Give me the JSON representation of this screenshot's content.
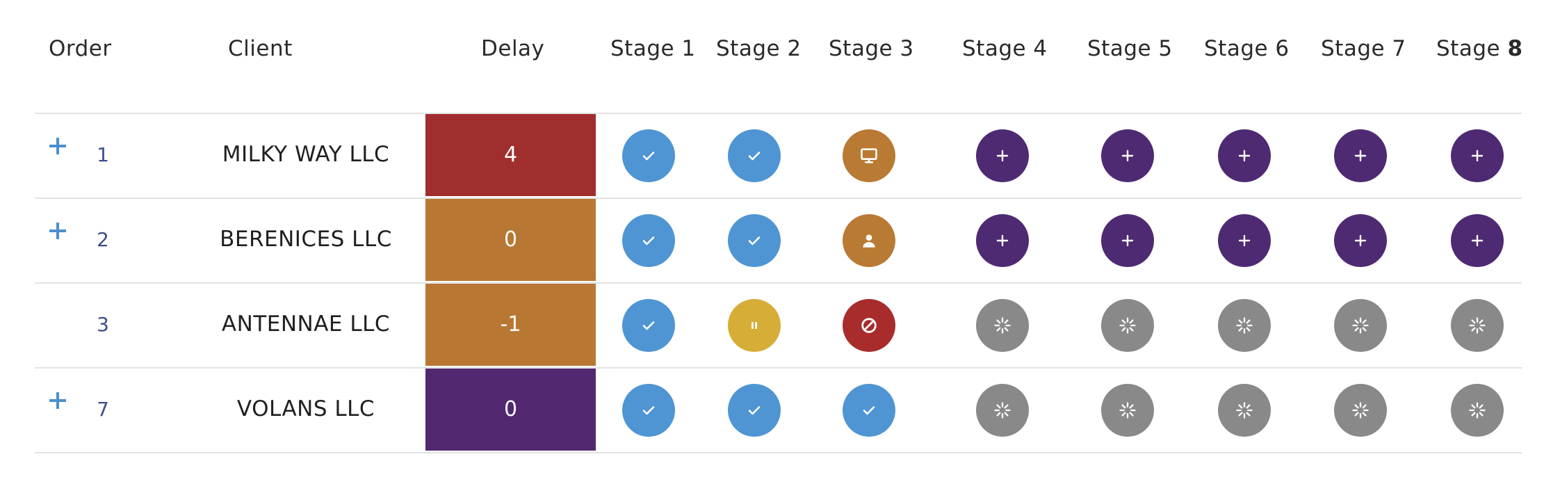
{
  "headers": {
    "order": "Order",
    "client": "Client",
    "delay": "Delay",
    "stages": [
      {
        "label": "Stage 1"
      },
      {
        "label": "Stage 2"
      },
      {
        "label": "Stage 3"
      },
      {
        "label": "Stage 4"
      },
      {
        "label": "Stage 5"
      },
      {
        "label": "Stage 6"
      },
      {
        "label": "Stage 7"
      },
      {
        "label_prefix": "Stage ",
        "label_bold": "8"
      }
    ]
  },
  "colors": {
    "done": "#4f95d3",
    "pending_plus": "#4e2a72",
    "in_progress": "#b97a33",
    "paused": "#d6ad37",
    "blocked": "#a82c2c",
    "waiting": "#898989",
    "delay_red": "#a12e2e",
    "delay_orange": "#b87834",
    "delay_purple": "#522970",
    "expand_blue": "#4a90d0"
  },
  "rows": [
    {
      "has_expand": true,
      "expand_icon": "plus-icon",
      "order": "1",
      "client": "MILKY WAY LLC",
      "delay": "4",
      "delay_color": "#a12e2e",
      "stages": [
        "check",
        "check",
        "monitor",
        "plus",
        "plus",
        "plus",
        "plus",
        "plus"
      ]
    },
    {
      "has_expand": true,
      "expand_icon": "plus-icon",
      "order": "2",
      "client": "BERENICES LLC",
      "delay": "0",
      "delay_color": "#b87834",
      "stages": [
        "check",
        "check",
        "person",
        "plus",
        "plus",
        "plus",
        "plus",
        "plus"
      ]
    },
    {
      "has_expand": false,
      "order": "3",
      "client": "ANTENNAE LLC",
      "delay": "-1",
      "delay_color": "#b87834",
      "stages": [
        "check",
        "pause",
        "ban",
        "spinner",
        "spinner",
        "spinner",
        "spinner",
        "spinner"
      ]
    },
    {
      "has_expand": true,
      "expand_icon": "plus-icon",
      "order": "7",
      "client": "VOLANS LLC",
      "delay": "0",
      "delay_color": "#522970",
      "stages": [
        "check",
        "check",
        "check",
        "spinner",
        "spinner",
        "spinner",
        "spinner",
        "spinner"
      ]
    }
  ]
}
